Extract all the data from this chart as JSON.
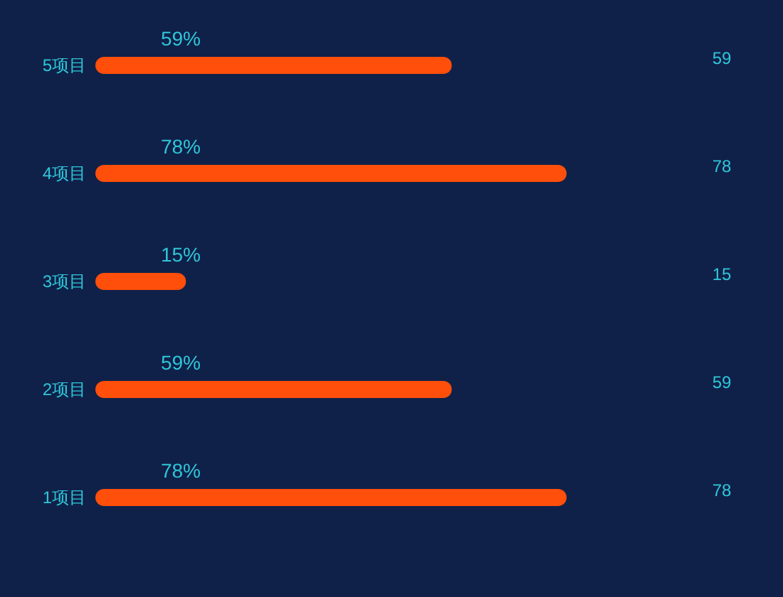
{
  "chart_data": {
    "type": "bar",
    "orientation": "horizontal",
    "categories": [
      "5项目",
      "4项目",
      "3项目",
      "2项目",
      "1项目"
    ],
    "series": [
      {
        "color": "#ff4f0a",
        "values": [
          59,
          78,
          15,
          59,
          78
        ]
      }
    ],
    "value_labels": [
      "59%",
      "78%",
      "15%",
      "59%",
      "78%"
    ],
    "data_labels": true,
    "grid": false,
    "legend": false
  }
}
